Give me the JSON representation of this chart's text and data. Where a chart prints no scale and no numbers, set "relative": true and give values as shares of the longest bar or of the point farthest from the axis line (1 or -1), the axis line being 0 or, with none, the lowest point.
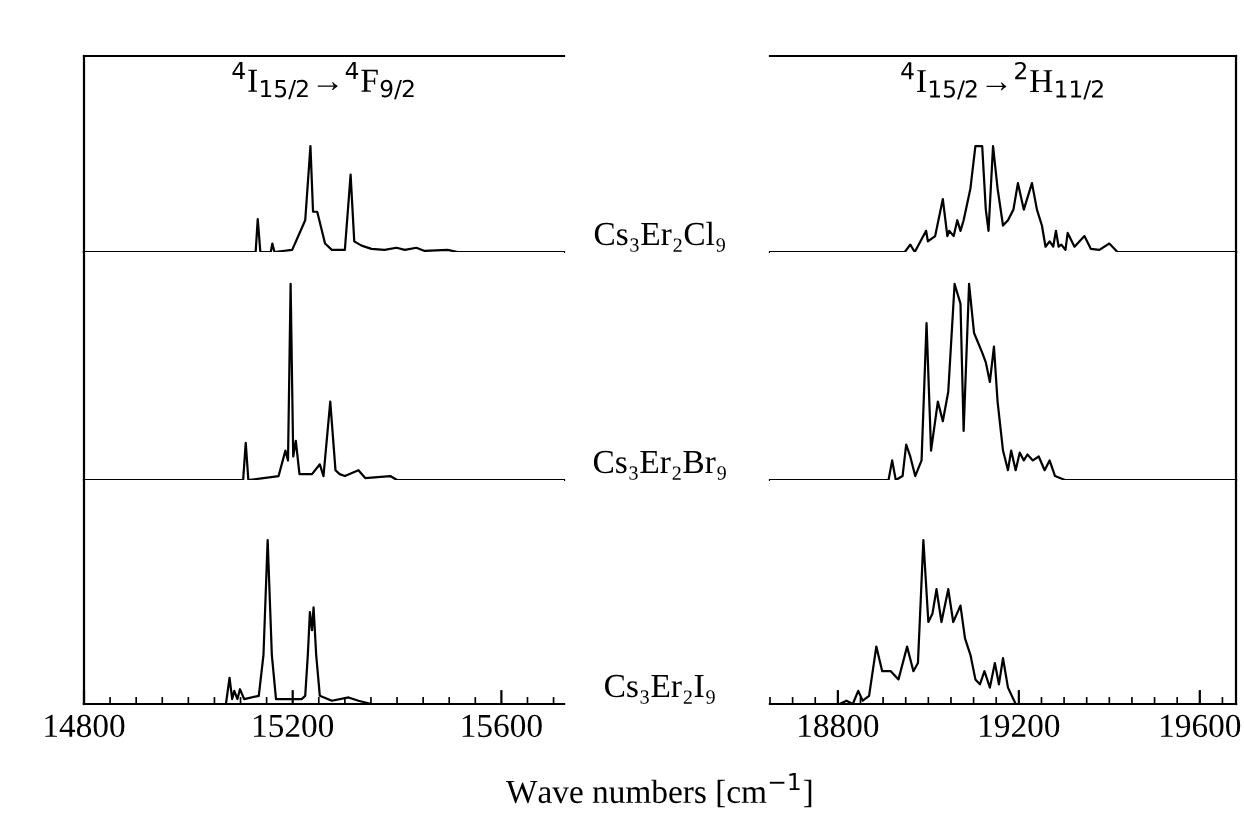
{
  "chart_data": [
    {
      "type": "line",
      "relative": true,
      "title": "$^{4}$I$_{15/2}$→$^{4}$F$_{9/2}$",
      "annotations": [
        "Cs₃Er₂Cl₉"
      ],
      "tick_labels": false,
      "xlim": [
        14800,
        15720
      ],
      "series": [
        {
          "color": "#000000",
          "x": [
            14800,
            15129,
            15133,
            15138,
            15158,
            15161,
            15165,
            15199,
            15224,
            15234,
            15239,
            15247,
            15256,
            15262,
            15275,
            15300,
            15311,
            15318,
            15332,
            15351,
            15376,
            15399,
            15415,
            15437,
            15453,
            15497,
            15516,
            15720
          ],
          "values": [
            0,
            0,
            0.31,
            0,
            0,
            0.08,
            0,
            0.02,
            0.3,
            1.0,
            0.38,
            0.38,
            0.2,
            0.08,
            0.02,
            0.02,
            0.73,
            0.1,
            0.06,
            0.03,
            0.02,
            0.04,
            0.02,
            0.04,
            0.01,
            0.02,
            0,
            0
          ]
        }
      ]
    },
    {
      "type": "line",
      "relative": true,
      "title": "$^{4}$I$_{15/2}$→$^{2}$H$_{11/2}$",
      "tick_labels": false,
      "xlim": [
        18650,
        19680
      ],
      "series": [
        {
          "color": "#000000",
          "x": [
            18650,
            18948,
            18960,
            18970,
            18995,
            18999,
            19015,
            19032,
            19042,
            19046,
            19056,
            19064,
            19071,
            19078,
            19093,
            19104,
            19119,
            19127,
            19133,
            19143,
            19153,
            19165,
            19176,
            19188,
            19198,
            19211,
            19229,
            19240,
            19251,
            19259,
            19268,
            19276,
            19282,
            19288,
            19294,
            19303,
            19308,
            19323,
            19345,
            19359,
            19378,
            19400,
            19418,
            19425,
            19680
          ],
          "values": [
            0,
            0,
            0.07,
            0,
            0.2,
            0.1,
            0.15,
            0.5,
            0.15,
            0.2,
            0.15,
            0.3,
            0.2,
            0.3,
            0.6,
            1.0,
            1.0,
            0.4,
            0.2,
            1.0,
            0.6,
            0.25,
            0.3,
            0.4,
            0.65,
            0.4,
            0.65,
            0.4,
            0.25,
            0.05,
            0.1,
            0.05,
            0.2,
            0.05,
            0.07,
            0.02,
            0.18,
            0.05,
            0.15,
            0.03,
            0.02,
            0.08,
            0,
            0,
            0
          ]
        }
      ]
    },
    {
      "type": "line",
      "relative": true,
      "annotations": [
        "Cs₃Er₂Br₉"
      ],
      "tick_labels": false,
      "xlim": [
        14800,
        15720
      ],
      "series": [
        {
          "color": "#000000",
          "x": [
            14800,
            15105,
            15110,
            15115,
            15173,
            15186,
            15191,
            15196,
            15201,
            15206,
            15213,
            15224,
            15237,
            15252,
            15259,
            15272,
            15282,
            15290,
            15300,
            15326,
            15339,
            15387,
            15400,
            15720
          ],
          "values": [
            0,
            0,
            0.19,
            0,
            0.02,
            0.15,
            0.1,
            1.0,
            0.12,
            0.2,
            0.03,
            0.03,
            0.03,
            0.08,
            0.02,
            0.4,
            0.05,
            0.03,
            0.02,
            0.05,
            0.01,
            0.02,
            0,
            0
          ]
        }
      ]
    },
    {
      "type": "line",
      "relative": true,
      "tick_labels": false,
      "xlim": [
        18650,
        19680
      ],
      "series": [
        {
          "color": "#000000",
          "x": [
            18650,
            18912,
            18920,
            18928,
            18943,
            18951,
            18960,
            18971,
            18985,
            18996,
            19006,
            19021,
            19032,
            19044,
            19058,
            19071,
            19078,
            19090,
            19101,
            19110,
            19119,
            19127,
            19136,
            19145,
            19153,
            19165,
            19176,
            19183,
            19193,
            19202,
            19211,
            19219,
            19231,
            19244,
            19257,
            19268,
            19280,
            19302,
            19680
          ],
          "values": [
            0,
            0,
            0.1,
            0,
            0.02,
            0.18,
            0.12,
            0.02,
            0.1,
            0.8,
            0.15,
            0.4,
            0.3,
            0.45,
            1.0,
            0.9,
            0.25,
            1.0,
            0.75,
            0.7,
            0.65,
            0.6,
            0.5,
            0.68,
            0.4,
            0.15,
            0.05,
            0.15,
            0.05,
            0.14,
            0.1,
            0.13,
            0.1,
            0.12,
            0.05,
            0.1,
            0.02,
            0,
            0
          ]
        }
      ]
    },
    {
      "type": "line",
      "relative": true,
      "annotations": [
        "Cs₃Er₂I₉"
      ],
      "xlabel": "Wave numbers [cm$^{−1}$]",
      "tick_labels": "x",
      "xlim": [
        14800,
        15720
      ],
      "xticks": [
        14800,
        15200,
        15600
      ],
      "series": [
        {
          "color": "#000000",
          "x": [
            14800,
            15072,
            15079,
            15084,
            15088,
            15094,
            15099,
            15107,
            15135,
            15144,
            15152,
            15160,
            15168,
            15188,
            15217,
            15224,
            15229,
            15233,
            15237,
            15240,
            15245,
            15252,
            15275,
            15307,
            15326,
            15351,
            15720
          ],
          "values": [
            0,
            0,
            0.16,
            0.03,
            0.08,
            0.03,
            0.09,
            0.03,
            0.05,
            0.3,
            1.0,
            0.3,
            0.03,
            0.03,
            0.03,
            0.05,
            0.3,
            0.56,
            0.45,
            0.59,
            0.3,
            0.05,
            0.02,
            0.04,
            0.02,
            0,
            0
          ]
        }
      ]
    },
    {
      "type": "line",
      "relative": true,
      "tick_labels": "x",
      "xlim": [
        18650,
        19680
      ],
      "xticks": [
        18800,
        19200,
        19600
      ],
      "series": [
        {
          "color": "#000000",
          "x": [
            18650,
            18804,
            18819,
            18833,
            18845,
            18855,
            18869,
            18885,
            18898,
            18917,
            18934,
            18953,
            18967,
            18977,
            18989,
            19000,
            19009,
            19018,
            19029,
            19044,
            19055,
            19071,
            19081,
            19093,
            19104,
            19114,
            19124,
            19136,
            19147,
            19156,
            19165,
            19176,
            19193,
            19680
          ],
          "values": [
            0,
            0,
            0.02,
            0,
            0.08,
            0.02,
            0.05,
            0.35,
            0.2,
            0.2,
            0.15,
            0.35,
            0.2,
            0.25,
            1.0,
            0.5,
            0.55,
            0.7,
            0.5,
            0.7,
            0.5,
            0.6,
            0.4,
            0.3,
            0.15,
            0.12,
            0.2,
            0.1,
            0.25,
            0.12,
            0.28,
            0.1,
            0,
            0
          ]
        }
      ]
    }
  ]
}
